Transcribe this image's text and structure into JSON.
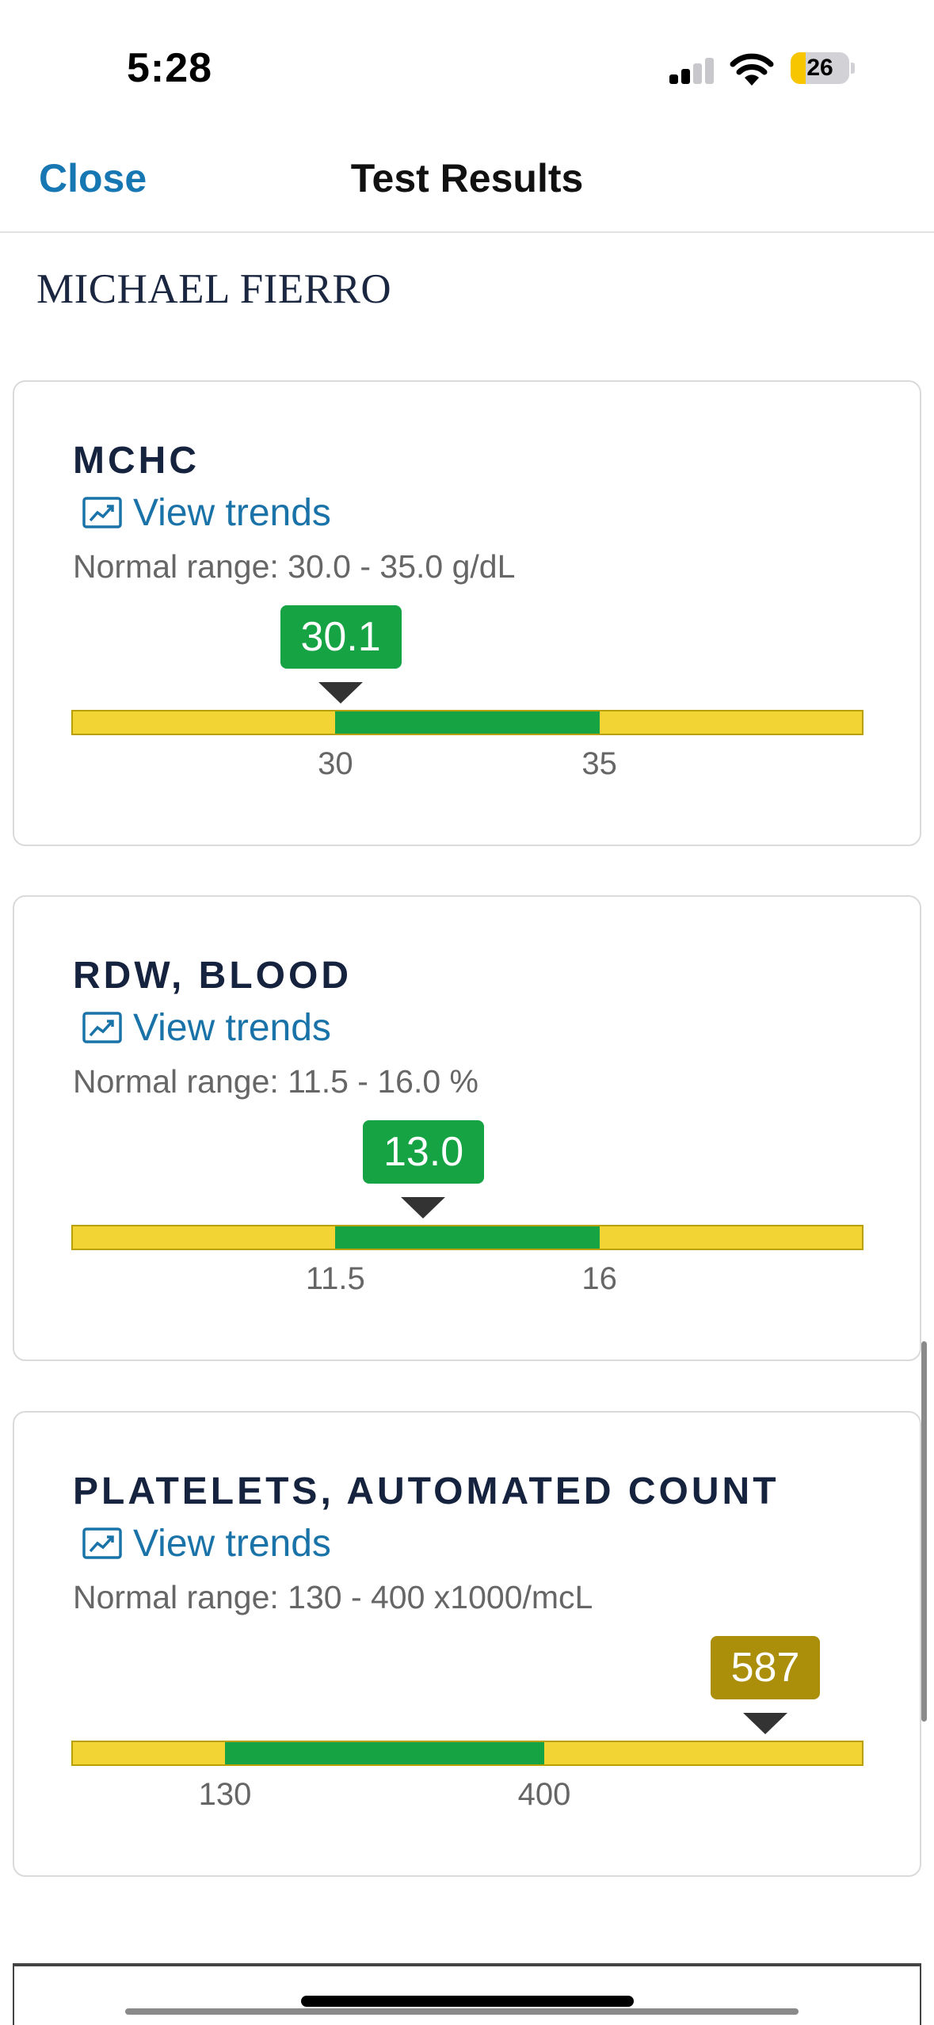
{
  "status_bar": {
    "time": "5:28",
    "battery_level": "26",
    "battery_percent": 26,
    "signal_bars_active": 2,
    "signal_bars_total": 4,
    "icons": [
      "cellular-signal-icon",
      "wifi-icon",
      "battery-icon"
    ]
  },
  "nav": {
    "close_label": "Close",
    "title": "Test Results"
  },
  "patient": {
    "name": "MICHAEL FIERRO"
  },
  "colors": {
    "accent": "#1777b3",
    "normal": "#16a344",
    "out_of_range": "#f2d535",
    "high_badge": "#ab8f0a",
    "title_text": "#16233f"
  },
  "results": [
    {
      "name": "MCHC",
      "view_trends_label": "View trends",
      "normal_range_text": "Normal range: 30.0 - 35.0 g/dL",
      "value": "30.1",
      "value_num": 30.1,
      "low": 30,
      "high": 35,
      "low_label": "30",
      "high_label": "35",
      "status": "normal"
    },
    {
      "name": "RDW, BLOOD",
      "view_trends_label": "View trends",
      "normal_range_text": "Normal range: 11.5 - 16.0 %",
      "value": "13.0",
      "value_num": 13.0,
      "low": 11.5,
      "high": 16,
      "low_label": "11.5",
      "high_label": "16",
      "status": "normal"
    },
    {
      "name": "PLATELETS, AUTOMATED COUNT",
      "view_trends_label": "View trends",
      "normal_range_text": "Normal range: 130 - 400 x1000/mcL",
      "value": "587",
      "value_num": 587,
      "low": 130,
      "high": 400,
      "low_label": "130",
      "high_label": "400",
      "status": "high"
    }
  ]
}
